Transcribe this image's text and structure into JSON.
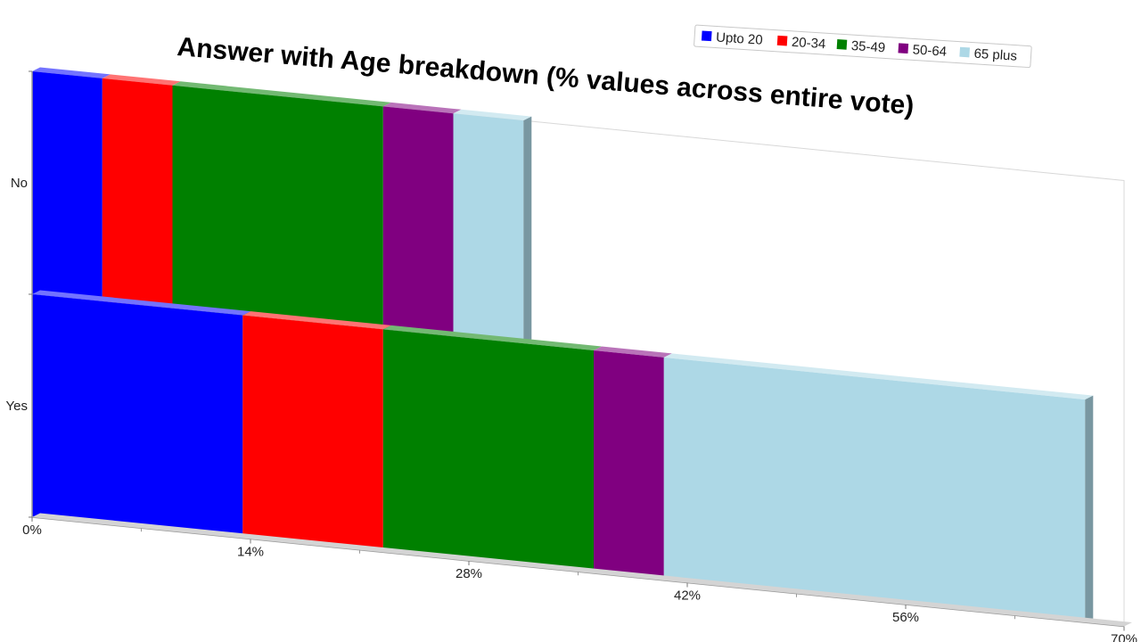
{
  "chart_data": {
    "type": "bar",
    "orientation": "horizontal",
    "stacked": true,
    "title": "Answer with Age breakdown (% values across entire vote)",
    "categories": [
      "No",
      "Yes"
    ],
    "series": [
      {
        "name": "Upto 20",
        "color": "#0000ff",
        "values": [
          4.5,
          13.5
        ]
      },
      {
        "name": "20-34",
        "color": "#ff0000",
        "values": [
          4.5,
          9.0
        ]
      },
      {
        "name": "35-49",
        "color": "#008000",
        "values": [
          13.5,
          13.5
        ]
      },
      {
        "name": "50-64",
        "color": "#800080",
        "values": [
          4.5,
          4.5
        ]
      },
      {
        "name": "65 plus",
        "color": "#add8e6",
        "values": [
          4.5,
          27.0
        ]
      }
    ],
    "xlim": [
      0,
      70
    ],
    "x_ticks": [
      "0%",
      "14%",
      "28%",
      "42%",
      "56%",
      "70%"
    ],
    "x_tick_values": [
      0,
      14,
      28,
      42,
      56,
      70
    ],
    "grid": false,
    "legend_position": "top-right",
    "three_d": true
  }
}
